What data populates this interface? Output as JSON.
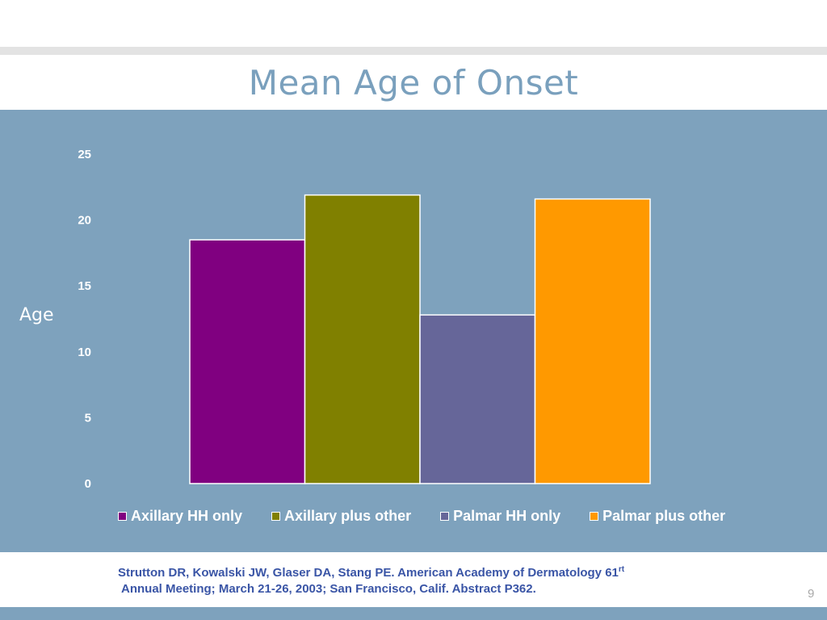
{
  "slide": {
    "title": "Mean Age of Onset",
    "page_number": "9",
    "citation_line1": "Strutton DR, Kowalski JW, Glaser DA, Stang PE.  American Academy of Dermatology 61",
    "citation_sup": "rt",
    "citation_line2": "Annual Meeting; March 21-26, 2003; San Francisco, Calif. Abstract P362."
  },
  "colors": {
    "panel_background": "#7ea2bd",
    "title": "#7aa0bd",
    "citation": "#3a55a6"
  },
  "chart_data": {
    "type": "bar",
    "title": "Mean Age of Onset",
    "xlabel": "",
    "ylabel": "Age",
    "ylim": [
      0,
      25
    ],
    "yticks": [
      0,
      5,
      10,
      15,
      20,
      25
    ],
    "grid": false,
    "legend_position": "bottom",
    "series": [
      {
        "name": "Axillary HH only",
        "value": 18.5,
        "color": "#800080"
      },
      {
        "name": "Axillary plus other",
        "value": 21.9,
        "color": "#808000"
      },
      {
        "name": "Palmar HH only",
        "value": 12.8,
        "color": "#666699"
      },
      {
        "name": "Palmar plus other",
        "value": 21.6,
        "color": "#ff9900"
      }
    ]
  }
}
